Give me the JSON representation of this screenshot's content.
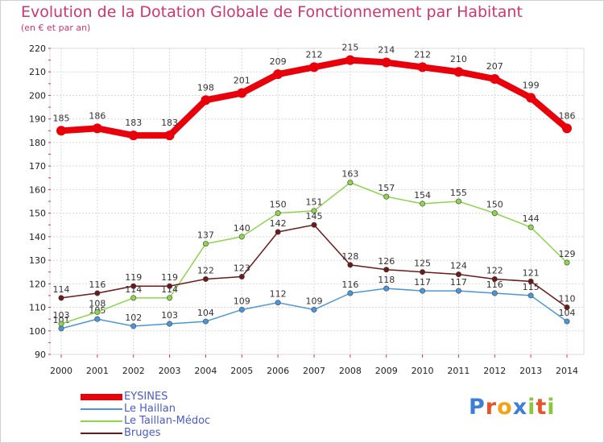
{
  "title": "Evolution de la Dotation Globale de Fonctionnement par Habitant",
  "subtitle": "(en € et par an)",
  "brand": {
    "name": "Proxiti",
    "letter_colors": [
      "#3d7fd6",
      "#e8532b",
      "#f3a317",
      "#3d7fd6",
      "#8cc63f",
      "#e8532b",
      "#8cc63f"
    ]
  },
  "chart_data": {
    "type": "line",
    "title": "Evolution de la Dotation Globale de Fonctionnement par Habitant",
    "subtitle": "(en € et par an)",
    "x": [
      "2000",
      "2001",
      "2002",
      "2003",
      "2004",
      "2005",
      "2006",
      "2007",
      "2008",
      "2009",
      "2010",
      "2011",
      "2012",
      "2013",
      "2014"
    ],
    "ylim": [
      90,
      220
    ],
    "yticks": [
      "90",
      "100",
      "110",
      "120",
      "130",
      "140",
      "150",
      "160",
      "170",
      "180",
      "190",
      "200",
      "210",
      "220"
    ],
    "grid": true,
    "legend_position": "bottom-left",
    "series": [
      {
        "name": "EYSINES",
        "color": "#e8000b",
        "emphasis": true,
        "values": [
          185,
          186,
          183,
          183,
          198,
          201,
          209,
          212,
          215,
          214,
          212,
          210,
          207,
          199,
          186
        ]
      },
      {
        "name": "Le Haillan",
        "color": "#4c96d7",
        "values": [
          101,
          105,
          102,
          103,
          104,
          109,
          112,
          109,
          116,
          118,
          117,
          117,
          116,
          115,
          104
        ]
      },
      {
        "name": "Le Taillan-Médoc",
        "color": "#8fd44c",
        "values": [
          103,
          108,
          114,
          114,
          137,
          140,
          150,
          151,
          163,
          157,
          154,
          155,
          150,
          144,
          129
        ]
      },
      {
        "name": "Bruges",
        "color": "#6b1a1a",
        "values": [
          114,
          116,
          119,
          119,
          122,
          123,
          142,
          145,
          128,
          126,
          125,
          124,
          122,
          121,
          110
        ]
      }
    ]
  }
}
